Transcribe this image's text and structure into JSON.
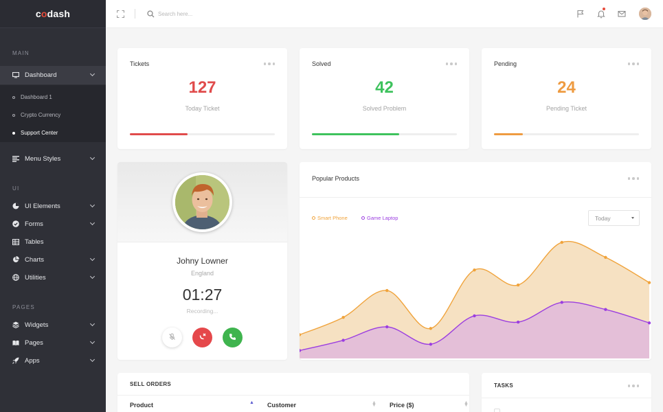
{
  "brand": {
    "prefix": "c",
    "accent": "o",
    "suffix": "dash"
  },
  "sidebar": {
    "sections": [
      "MAIN",
      "UI",
      "PAGES"
    ],
    "dashboard": "Dashboard",
    "submenu": [
      "Dashboard 1",
      "Crypto Currency",
      "Support Center"
    ],
    "menu_styles": "Menu Styles",
    "ui_items": [
      "UI Elements",
      "Forms",
      "Tables",
      "Charts",
      "Utilities"
    ],
    "page_items": [
      "Widgets",
      "Pages",
      "Apps"
    ]
  },
  "topbar": {
    "search_placeholder": "Search here..."
  },
  "stats": [
    {
      "title": "Tickets",
      "value": "127",
      "subtitle": "Today Ticket",
      "color": "#e04b4b",
      "progress": 0.4
    },
    {
      "title": "Solved",
      "value": "42",
      "subtitle": "Solved Problem",
      "color": "#3ec25d",
      "progress": 0.6
    },
    {
      "title": "Pending",
      "value": "24",
      "subtitle": "Pending Ticket",
      "color": "#ee9b41",
      "progress": 0.2
    }
  ],
  "profile": {
    "name": "Johny Lowner",
    "country": "England",
    "timer": "01:27",
    "status": "Recording..."
  },
  "popular": {
    "title": "Popular Products",
    "select_value": "Today",
    "legend": [
      {
        "label": "Smart Phone",
        "color": "#f0a33b"
      },
      {
        "label": "Game Laptop",
        "color": "#9b3ee0"
      }
    ]
  },
  "chart_data": {
    "type": "area",
    "x": [
      1,
      2,
      3,
      4,
      5,
      6,
      7,
      8,
      9
    ],
    "series": [
      {
        "name": "Smart Phone",
        "values": [
          30,
          52,
          86,
          38,
          112,
          93,
          147,
          128,
          96
        ],
        "color": "#f0a33b",
        "fill": "#f6e1c2"
      },
      {
        "name": "Game Laptop",
        "values": [
          10,
          23,
          40,
          18,
          54,
          46,
          71,
          62,
          45
        ],
        "color": "#9b3ee0",
        "fill": "#e4bfd8"
      }
    ],
    "ylim": [
      0,
      160
    ],
    "grid": false
  },
  "sell_orders": {
    "title": "SELL ORDERS",
    "columns": [
      "Product",
      "Customer",
      "Price ($)"
    ]
  },
  "tasks": {
    "title": "TASKS"
  }
}
